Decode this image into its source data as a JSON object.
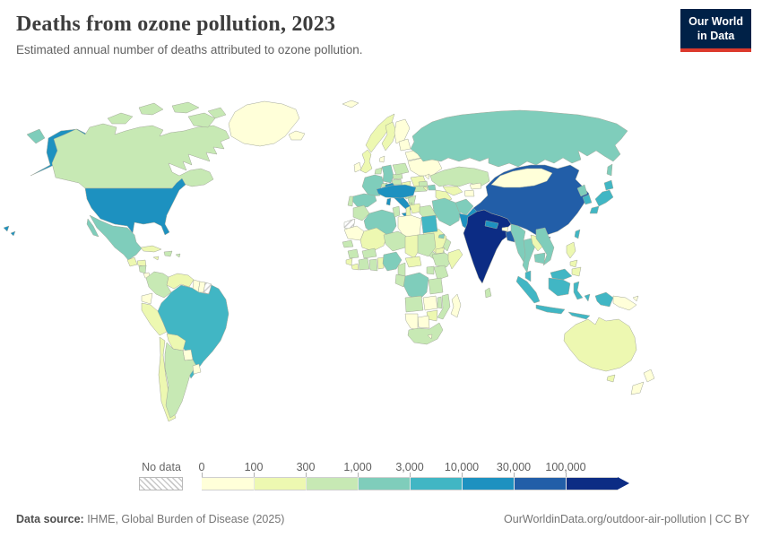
{
  "header": {
    "title": "Deaths from ozone pollution, 2023",
    "subtitle": "Estimated annual number of deaths attributed to ozone pollution."
  },
  "logo": {
    "line1": "Our World",
    "line2": "in Data",
    "bg_color": "#002147",
    "accent_color": "#dc392c"
  },
  "legend": {
    "no_data_label": "No data",
    "tick_labels": [
      "0",
      "100",
      "300",
      "1,000",
      "3,000",
      "10,000",
      "30,000",
      "100,000"
    ],
    "palette": [
      "#ffffd9",
      "#edf8b1",
      "#c7e9b4",
      "#7fcdbb",
      "#41b6c4",
      "#1d91c0",
      "#225ea8",
      "#0c2c84"
    ]
  },
  "footer": {
    "source_label": "Data source:",
    "source_text": " IHME, Global Burden of Disease (2025)",
    "link_text": "OurWorldinData.org/outdoor-air-pollution | CC BY"
  },
  "chart_data": {
    "type": "choropleth-map",
    "title": "Deaths from ozone pollution, 2023",
    "unit": "deaths",
    "bin_edges": [
      0,
      100,
      300,
      1000,
      3000,
      10000,
      30000,
      100000
    ],
    "bin_colors": [
      "#ffffd9",
      "#edf8b1",
      "#c7e9b4",
      "#7fcdbb",
      "#41b6c4",
      "#1d91c0",
      "#225ea8",
      "#0c2c84"
    ],
    "no_data_key": "nd",
    "countries": {
      "greenland": 0,
      "iceland": 0,
      "svalbard": 0,
      "canada": 2,
      "united-states": 5,
      "mexico": 3,
      "guatemala": 1,
      "honduras": 1,
      "nicaragua": 2,
      "costa-rica": 0,
      "panama": 2,
      "cuba": 1,
      "jamaica": 1,
      "hispaniola": 2,
      "puerto-rico": 2,
      "colombia": 2,
      "venezuela": 1,
      "guyana": 0,
      "suriname": 0,
      "french-guiana": "nd",
      "ecuador": 0,
      "peru": 1,
      "brazil": 4,
      "bolivia": 1,
      "paraguay": 0,
      "chile": 1,
      "argentina": 2,
      "uruguay": 0,
      "norway": 1,
      "sweden": 1,
      "finland": 0,
      "denmark": 0,
      "united-kingdom": 1,
      "ireland": 0,
      "netherlands": 2,
      "germany": 3,
      "france": 3,
      "spain": 3,
      "portugal": 2,
      "italy": 5,
      "switzerland": 2,
      "czechia": 2,
      "austria": 2,
      "poland": 2,
      "hungary": 1,
      "balkans": 2,
      "greece": 2,
      "romania": 1,
      "bulgaria": 2,
      "ukraine": 0,
      "belarus": 0,
      "baltics": 0,
      "moldova": 0,
      "russia": 3,
      "kazakhstan": 2,
      "uzbekistan": 1,
      "turkmenistan": 1,
      "kyrgyzstan": 0,
      "tajikistan": 0,
      "georgia": 2,
      "azerbaijan": 3,
      "armenia": 1,
      "turkey": 5,
      "cyprus": 2,
      "syria": 1,
      "levant": 1,
      "iraq": 2,
      "saudi-arabia": 1,
      "yemen": 2,
      "oman": 2,
      "uae": 3,
      "iran": 3,
      "afghanistan": 3,
      "pakistan": 5,
      "india": 7,
      "nepal": 5,
      "bhutan": 0,
      "bangladesh": 6,
      "sri-lanka": 2,
      "china": 6,
      "mongolia": 0,
      "myanmar": 3,
      "thailand": 3,
      "laos": 1,
      "vietnam": 3,
      "cambodia": 3,
      "malaysia": 4,
      "indonesia": 4,
      "philippines": 1,
      "taiwan": 4,
      "north-korea": 3,
      "south-korea": 4,
      "japan": 4,
      "papua-new-guinea": 0,
      "morocco": 2,
      "western-sahara": "nd",
      "algeria": 3,
      "tunisia": 2,
      "libya": 0,
      "egypt": 4,
      "mauritania": 0,
      "mali": 1,
      "niger": 2,
      "chad": 1,
      "sudan": 2,
      "eritrea": 1,
      "senegal": 2,
      "guinea": 2,
      "sierra-leone": 1,
      "liberia": 1,
      "ivory-coast": 2,
      "ghana": 2,
      "togo-benin": 1,
      "burkina-faso": 2,
      "nigeria": 3,
      "cameroon": 2,
      "central-african-republic": 1,
      "ethiopia": 2,
      "somalia": 1,
      "kenya": 2,
      "uganda": 2,
      "dr-congo": 3,
      "congo-gabon": 2,
      "tanzania": 2,
      "angola": 2,
      "zambia": 0,
      "malawi": 2,
      "mozambique": 2,
      "zimbabwe": 1,
      "botswana": 0,
      "namibia": 0,
      "south-africa": 2,
      "lesotho": 0,
      "madagascar": 0,
      "australia": 1,
      "new-zealand": 0
    }
  }
}
